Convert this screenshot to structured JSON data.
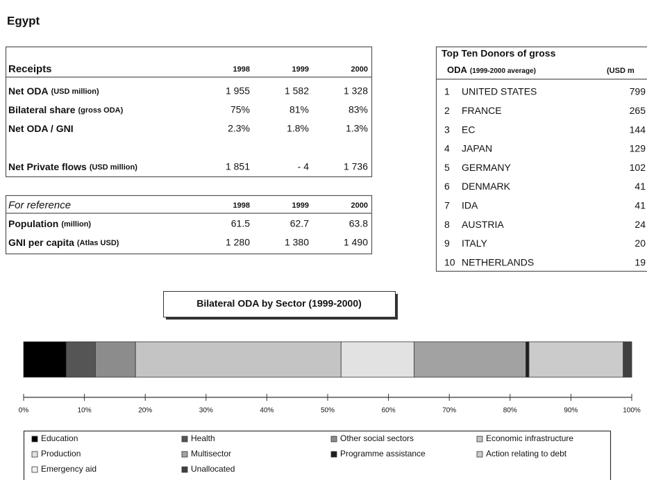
{
  "header": {
    "title": "Egypt"
  },
  "receipts": {
    "header": [
      "Receipts",
      "1998",
      "1999",
      "2000"
    ],
    "rows": [
      {
        "label": "Net ODA",
        "unit": "(USD million)",
        "values": [
          "1 955",
          "1 582",
          "1 328"
        ]
      },
      {
        "label": "Bilateral share",
        "unit": "(gross ODA)",
        "values": [
          "75%",
          "81%",
          "83%"
        ]
      },
      {
        "label": "Net ODA / GNI",
        "values": [
          "2.3%",
          "1.8%",
          "1.3%"
        ]
      },
      {
        "label": "Net Private flows",
        "unit": "(USD million)",
        "values": [
          "1 851",
          "- 4",
          "1 736"
        ]
      }
    ]
  },
  "reference": {
    "header": [
      "For reference",
      "1998",
      "1999",
      "2000"
    ],
    "rows": [
      {
        "label": "Population",
        "unit": "(million)",
        "values": [
          "61.5",
          "62.7",
          "63.8"
        ]
      },
      {
        "label": "GNI per capita",
        "unit": "(Atlas USD)",
        "values": [
          "1 280",
          "1 380",
          "1 490"
        ]
      }
    ]
  },
  "donors": {
    "title": "Top Ten Donors of gross",
    "subtitle": "ODA",
    "subtitle_note": "(1999-2000 average)",
    "unit": "(USD m",
    "rows": [
      [
        "1",
        "UNITED STATES",
        "799"
      ],
      [
        "2",
        "FRANCE",
        "265"
      ],
      [
        "3",
        "EC",
        "144"
      ],
      [
        "4",
        "JAPAN",
        "129"
      ],
      [
        "5",
        "GERMANY",
        "102"
      ],
      [
        "6",
        "DENMARK",
        "41"
      ],
      [
        "7",
        "IDA",
        "41"
      ],
      [
        "8",
        "AUSTRIA",
        "24"
      ],
      [
        "9",
        "ITALY",
        "20"
      ],
      [
        "10",
        "NETHERLANDS",
        "19"
      ]
    ]
  },
  "chart_data": {
    "type": "stacked_bar",
    "title": "Bilateral ODA by Sector (1999-2000)",
    "xlim": [
      0,
      100
    ],
    "xticks": [
      {
        "value": 0,
        "label": "0%"
      },
      {
        "value": 10,
        "label": "10%"
      },
      {
        "value": 20,
        "label": "20%"
      },
      {
        "value": 30,
        "label": "30%"
      },
      {
        "value": 40,
        "label": "40%"
      },
      {
        "value": 50,
        "label": "50%"
      },
      {
        "value": 60,
        "label": "60%"
      },
      {
        "value": 70,
        "label": "70%"
      },
      {
        "value": 80,
        "label": "80%"
      },
      {
        "value": 90,
        "label": "90%"
      },
      {
        "value": 100,
        "label": "100%"
      }
    ],
    "series": [
      {
        "name": "Education",
        "color": "#000000",
        "values": [
          7.0
        ]
      },
      {
        "name": "Health",
        "color": "#555555",
        "values": [
          4.8
        ]
      },
      {
        "name": "Other social sectors",
        "color": "#8c8c8c",
        "values": [
          6.6
        ]
      },
      {
        "name": "Economic infrastructure",
        "color": "#c4c4c4",
        "values": [
          33.8
        ]
      },
      {
        "name": "Production",
        "color": "#e2e2e2",
        "values": [
          12.0
        ]
      },
      {
        "name": "Multisector",
        "color": "#a2a2a2",
        "values": [
          18.4
        ]
      },
      {
        "name": "Programme assistance",
        "color": "#1e1e1e",
        "values": [
          0.5
        ]
      },
      {
        "name": "Action relating to debt",
        "color": "#cbcbcb",
        "values": [
          15.5
        ]
      },
      {
        "name": "Emergency aid",
        "color": "#f2f2f2",
        "values": [
          0
        ]
      },
      {
        "name": "Unallocated",
        "color": "#404040",
        "values": [
          1.4
        ]
      }
    ]
  }
}
